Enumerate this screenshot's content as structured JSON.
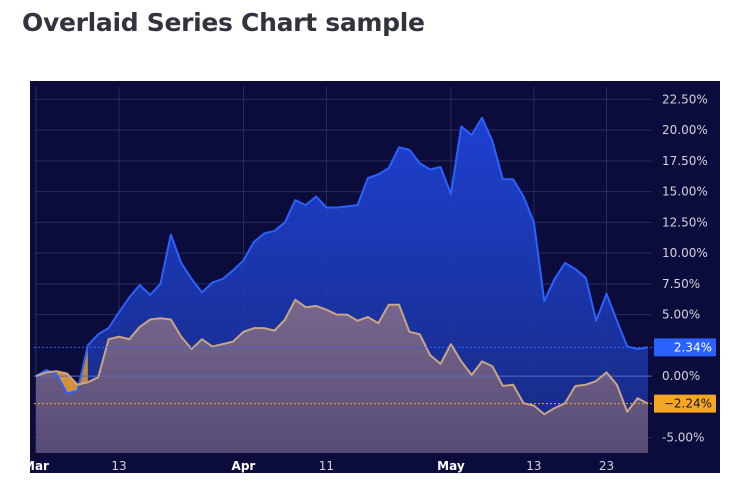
{
  "title": "Overlaid Series Chart sample",
  "colors": {
    "background": "#0b0c3b",
    "grid": "#2a2b5c",
    "axis_text": "#d1d4dc",
    "series_blue_line": "#2962ff",
    "series_blue_fill_top": "#1f43d9",
    "series_orange_line": "#c8a583",
    "series_orange_fill": "#6e5f82",
    "label_blue_bg": "#2962ff",
    "label_orange_bg": "#f5a623",
    "zero_line": "#5c6bc0"
  },
  "chart_data": {
    "type": "area",
    "title": "",
    "xlabel": "",
    "ylabel": "",
    "ylim": [
      -6.25,
      23.5
    ],
    "y_ticks": [
      "22.50%",
      "20.00%",
      "17.50%",
      "15.00%",
      "12.50%",
      "10.00%",
      "7.50%",
      "5.00%",
      "0.00%",
      "-5.00%"
    ],
    "y_tick_values": [
      22.5,
      20,
      17.5,
      15,
      12.5,
      10,
      7.5,
      5,
      0,
      -5
    ],
    "x_ticks": [
      {
        "label": "Mar",
        "index": 0
      },
      {
        "label": "13",
        "index": 8
      },
      {
        "label": "Apr",
        "index": 20
      },
      {
        "label": "11",
        "index": 28
      },
      {
        "label": "May",
        "index": 40
      },
      {
        "label": "13",
        "index": 48
      },
      {
        "label": "23",
        "index": 55
      }
    ],
    "last_value_labels": [
      {
        "text": "2.34%",
        "value": 2.34,
        "series": 0
      },
      {
        "text": "−2.24%",
        "value": -2.24,
        "series": 1
      }
    ],
    "series": [
      {
        "values": [
          0,
          0.5,
          0.1,
          -1.4,
          -1.2,
          2.5,
          3.4,
          3.9,
          5.2,
          6.4,
          7.4,
          6.6,
          7.5,
          11.5,
          9.2,
          7.9,
          6.8,
          7.6,
          7.9,
          8.6,
          9.4,
          10.9,
          11.6,
          11.8,
          12.5,
          14.3,
          13.9,
          14.6,
          13.7,
          13.7,
          13.8,
          13.9,
          16.1,
          16.4,
          16.9,
          18.6,
          18.4,
          17.3,
          16.8,
          17.0,
          14.8,
          20.3,
          19.6,
          21.0,
          19.1,
          16.0,
          16.0,
          14.6,
          12.5,
          6.1,
          7.9,
          9.2,
          8.7,
          8.0,
          4.5,
          6.7,
          4.5,
          2.4,
          2.2,
          2.34
        ]
      },
      {
        "values": [
          0,
          0.3,
          0.4,
          0.2,
          -0.7,
          -0.5,
          -0.1,
          3.0,
          3.2,
          3.0,
          4.0,
          4.6,
          4.7,
          4.6,
          3.2,
          2.2,
          3.0,
          2.4,
          2.6,
          2.8,
          3.6,
          3.9,
          3.9,
          3.7,
          4.6,
          6.2,
          5.6,
          5.7,
          5.4,
          5.0,
          5.0,
          4.5,
          4.8,
          4.3,
          5.8,
          5.8,
          3.6,
          3.4,
          1.7,
          1.0,
          2.6,
          1.2,
          0.1,
          1.2,
          0.8,
          -0.8,
          -0.7,
          -2.2,
          -2.4,
          -3.1,
          -2.6,
          -2.2,
          -0.8,
          -0.7,
          -0.4,
          0.3,
          -0.7,
          -2.9,
          -1.8,
          -2.24
        ]
      }
    ]
  }
}
